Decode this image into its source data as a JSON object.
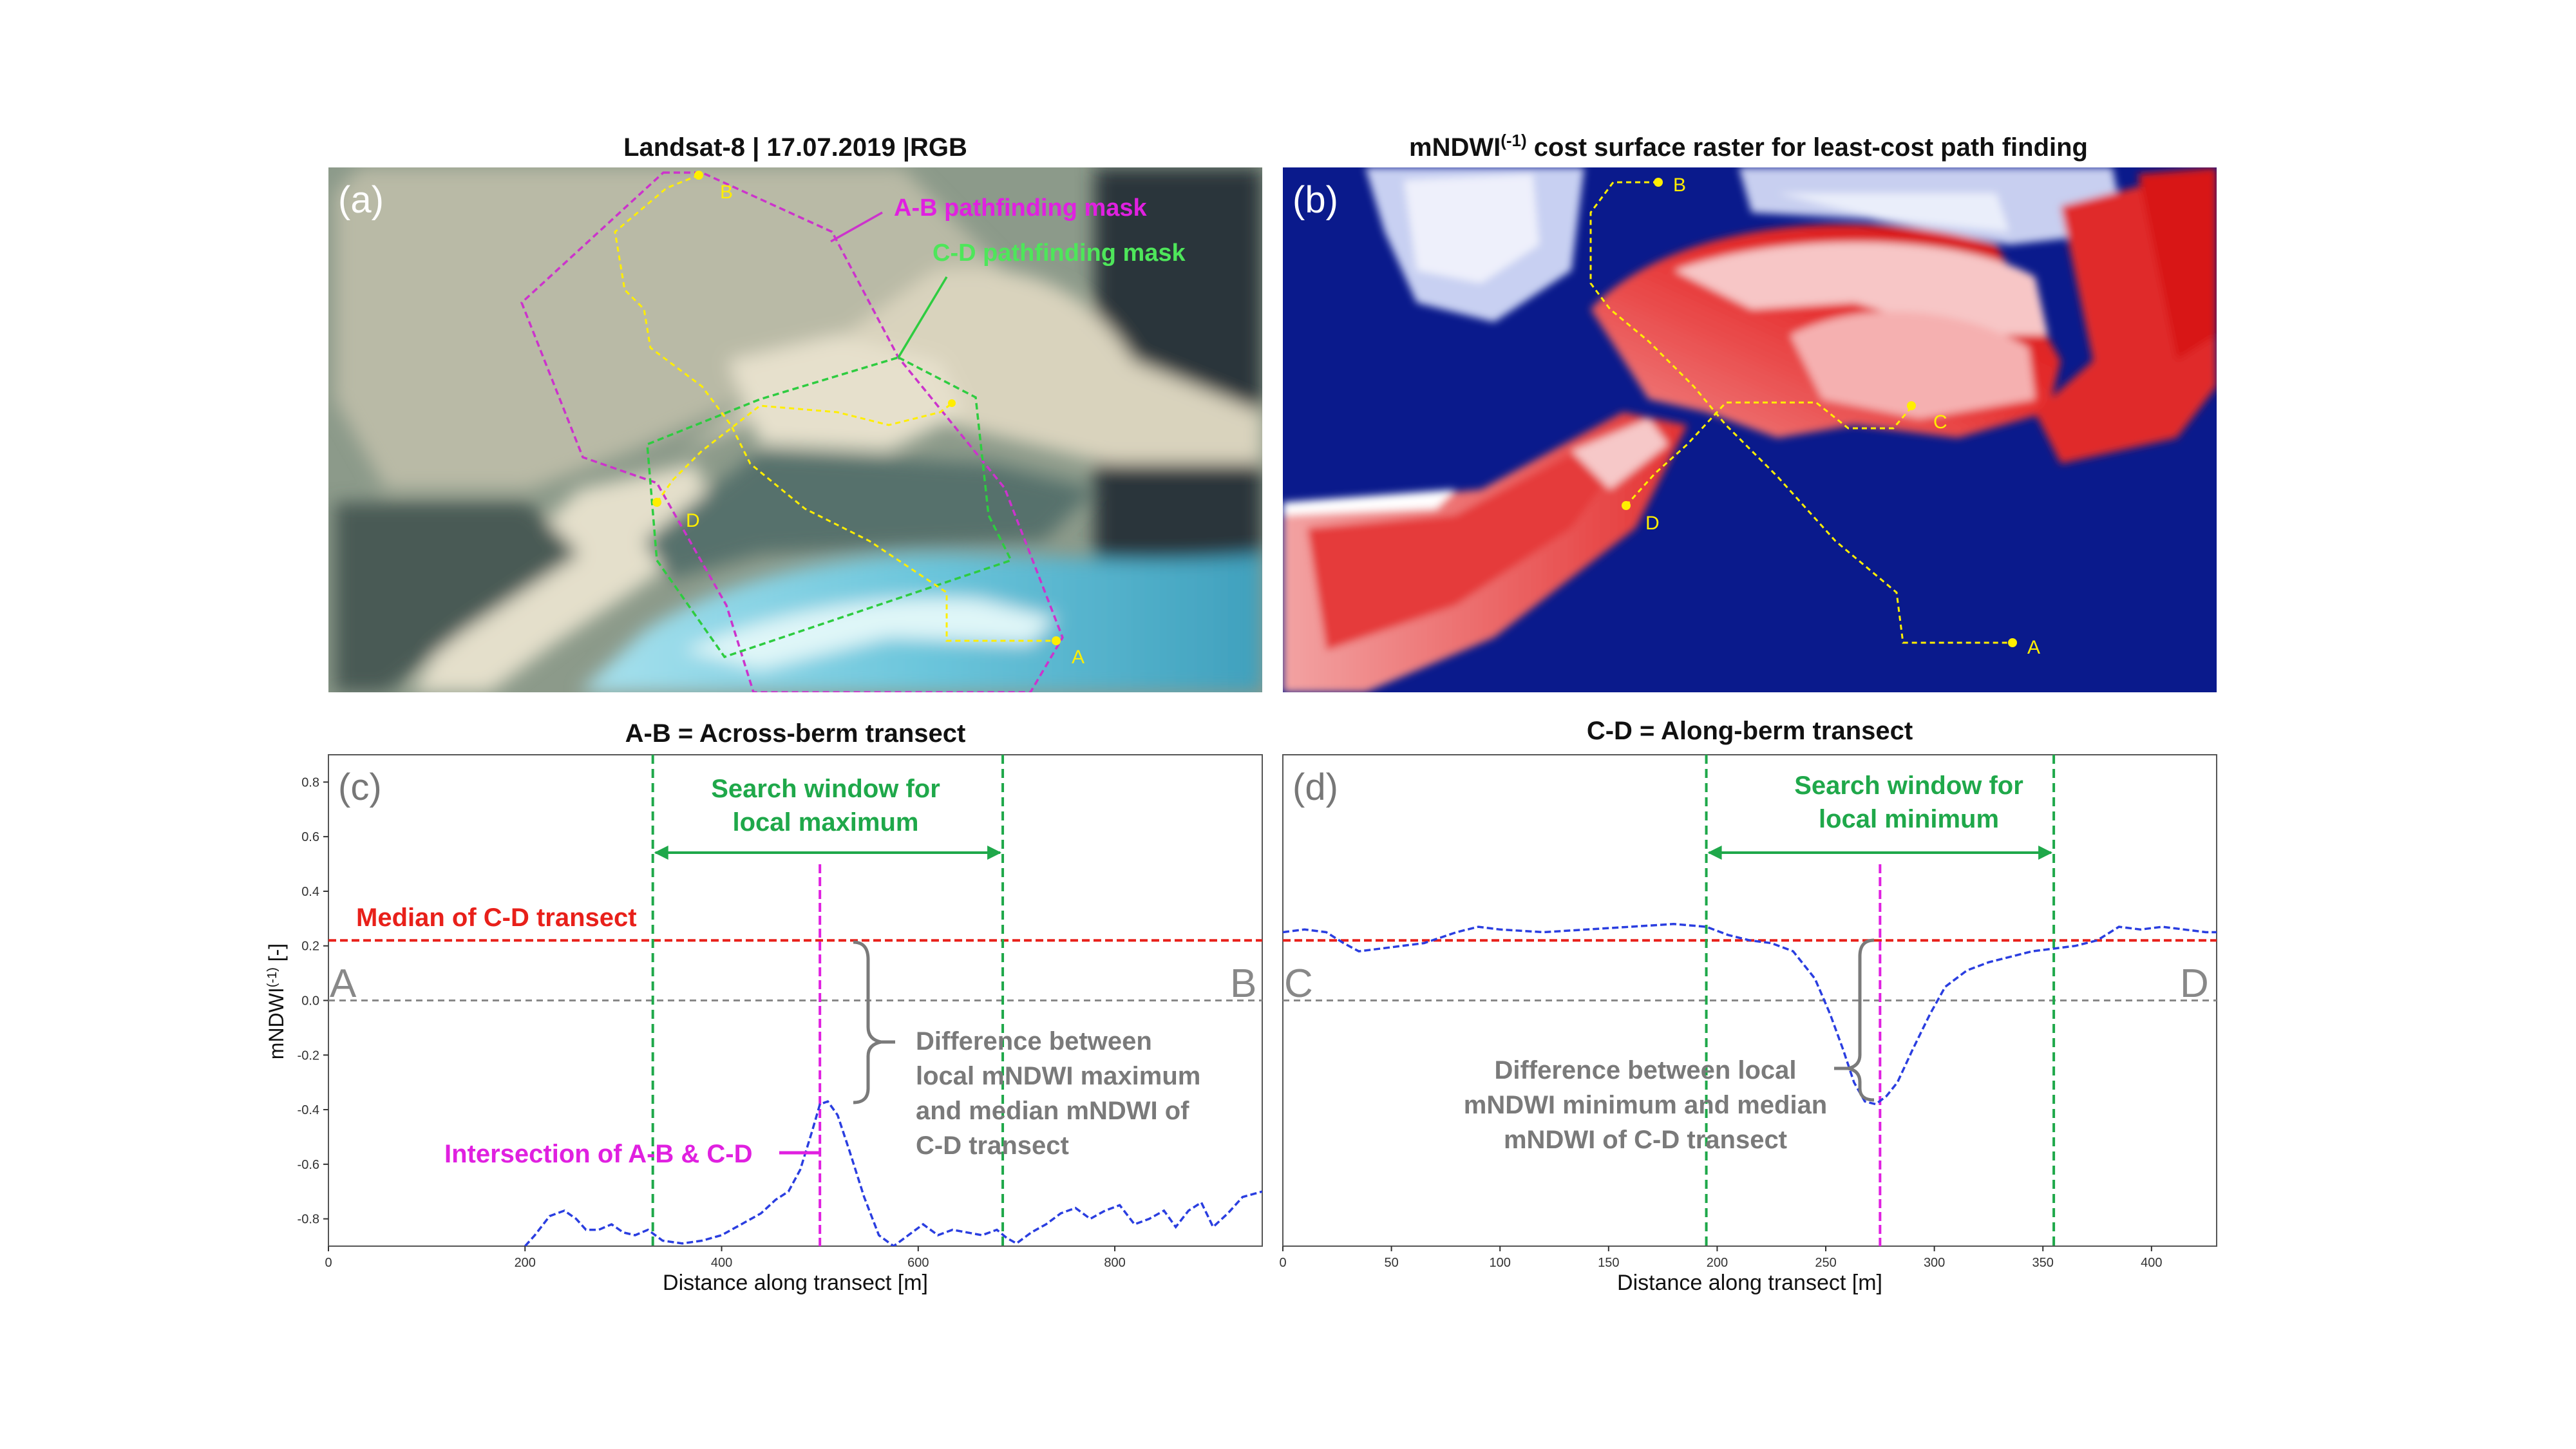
{
  "panel_a": {
    "title": "Landsat-8  |  17.07.2019 |RGB",
    "letter": "(a)",
    "mask_ab_label": "A-B pathfinding mask",
    "mask_cd_label": "C-D pathfinding mask",
    "points": {
      "A": "A",
      "B": "B",
      "D": "D"
    }
  },
  "panel_b": {
    "title_main": "mNDWI",
    "title_sup": "(-1)",
    "title_rest": " cost surface raster for least-cost path finding",
    "letter": "(b)",
    "points": {
      "A": "A",
      "B": "B",
      "C": "C",
      "D": "D"
    }
  },
  "colors": {
    "mask_ab": "#cc33cc",
    "mask_cd": "#2ecc40",
    "path": "#ffee00",
    "median": "#e8201a",
    "series": "#2a3ee0",
    "window": "#1fa84a",
    "intersection": "#e020e0",
    "annotation": "#7a7a7a"
  },
  "chart_data": [
    {
      "type": "line",
      "panel": "c",
      "title": "A-B = Across-berm transect",
      "letter": "(c)",
      "xlabel": "Distance along transect [m]",
      "ylabel": "mNDWI",
      "ylabel_sup": "(-1)",
      "ylabel_unit": " [-]",
      "xlim": [
        0,
        950
      ],
      "ylim": [
        -0.9,
        0.9
      ],
      "xticks": [
        0,
        200,
        400,
        600,
        800
      ],
      "yticks": [
        -0.8,
        -0.6,
        -0.4,
        -0.2,
        0.0,
        0.2,
        0.4,
        0.6,
        0.8
      ],
      "ytick_labels": [
        "-0.8",
        "-0.6",
        "-0.4",
        "-0.2",
        "0.0",
        "0.2",
        "0.4",
        "0.6",
        "0.8"
      ],
      "series": [
        {
          "x": [
            200,
            210,
            225,
            240,
            252,
            262,
            275,
            288,
            300,
            312,
            325,
            340,
            360,
            380,
            400,
            420,
            440,
            455,
            468,
            480,
            492,
            500,
            508,
            518,
            530,
            545,
            560,
            575,
            590,
            605,
            620,
            635,
            650,
            665,
            680,
            690,
            700,
            715,
            730,
            745,
            760,
            775,
            790,
            805,
            820,
            835,
            850,
            862,
            875,
            888,
            900,
            915,
            930,
            950
          ],
          "y": [
            -0.9,
            -0.86,
            -0.79,
            -0.77,
            -0.8,
            -0.84,
            -0.84,
            -0.82,
            -0.85,
            -0.86,
            -0.84,
            -0.88,
            -0.89,
            -0.88,
            -0.86,
            -0.82,
            -0.78,
            -0.73,
            -0.7,
            -0.62,
            -0.48,
            -0.38,
            -0.37,
            -0.42,
            -0.55,
            -0.72,
            -0.86,
            -0.9,
            -0.86,
            -0.82,
            -0.86,
            -0.84,
            -0.85,
            -0.86,
            -0.84,
            -0.87,
            -0.89,
            -0.85,
            -0.82,
            -0.78,
            -0.76,
            -0.8,
            -0.77,
            -0.75,
            -0.82,
            -0.8,
            -0.77,
            -0.83,
            -0.77,
            -0.74,
            -0.83,
            -0.78,
            -0.72,
            -0.7
          ]
        }
      ],
      "median": 0.22,
      "zero_line": 0.0,
      "window": [
        330,
        686
      ],
      "window_label_1": "Search window for",
      "window_label_2": "local maximum",
      "intersection_x": 500,
      "median_label": "Median of C-D transect",
      "intersection_label": "Intersection of A-B & C-D",
      "diff_label_1": "Difference between",
      "diff_label_2": "local mNDWI maximum",
      "diff_label_3": "and median mNDWI of",
      "diff_label_4": "C-D transect",
      "end_left": "A",
      "end_right": "B"
    },
    {
      "type": "line",
      "panel": "d",
      "title": "C-D = Along-berm transect",
      "letter": "(d)",
      "xlabel": "Distance along transect [m]",
      "xlim": [
        0,
        430
      ],
      "ylim": [
        -0.9,
        0.9
      ],
      "xticks": [
        0,
        50,
        100,
        150,
        200,
        250,
        300,
        350,
        400
      ],
      "series": [
        {
          "x": [
            0,
            10,
            20,
            28,
            35,
            45,
            55,
            65,
            80,
            90,
            100,
            120,
            140,
            160,
            180,
            195,
            205,
            215,
            225,
            235,
            245,
            252,
            258,
            263,
            268,
            273,
            278,
            283,
            290,
            298,
            305,
            315,
            325,
            335,
            345,
            355,
            365,
            375,
            385,
            395,
            405,
            415,
            425,
            430
          ],
          "y": [
            0.25,
            0.26,
            0.25,
            0.21,
            0.18,
            0.19,
            0.2,
            0.21,
            0.25,
            0.27,
            0.26,
            0.25,
            0.26,
            0.27,
            0.28,
            0.27,
            0.24,
            0.22,
            0.21,
            0.18,
            0.08,
            -0.05,
            -0.18,
            -0.3,
            -0.37,
            -0.38,
            -0.35,
            -0.3,
            -0.18,
            -0.05,
            0.05,
            0.11,
            0.14,
            0.16,
            0.18,
            0.19,
            0.2,
            0.22,
            0.27,
            0.26,
            0.27,
            0.26,
            0.25,
            0.25
          ]
        }
      ],
      "median": 0.22,
      "zero_line": 0.0,
      "window": [
        195,
        355
      ],
      "window_label_1": "Search window for",
      "window_label_2": "local minimum",
      "intersection_x": 275,
      "diff_label_1": "Difference between local",
      "diff_label_2": "mNDWI minimum and median",
      "diff_label_3": "mNDWI of C-D transect",
      "end_left": "C",
      "end_right": "D"
    }
  ]
}
